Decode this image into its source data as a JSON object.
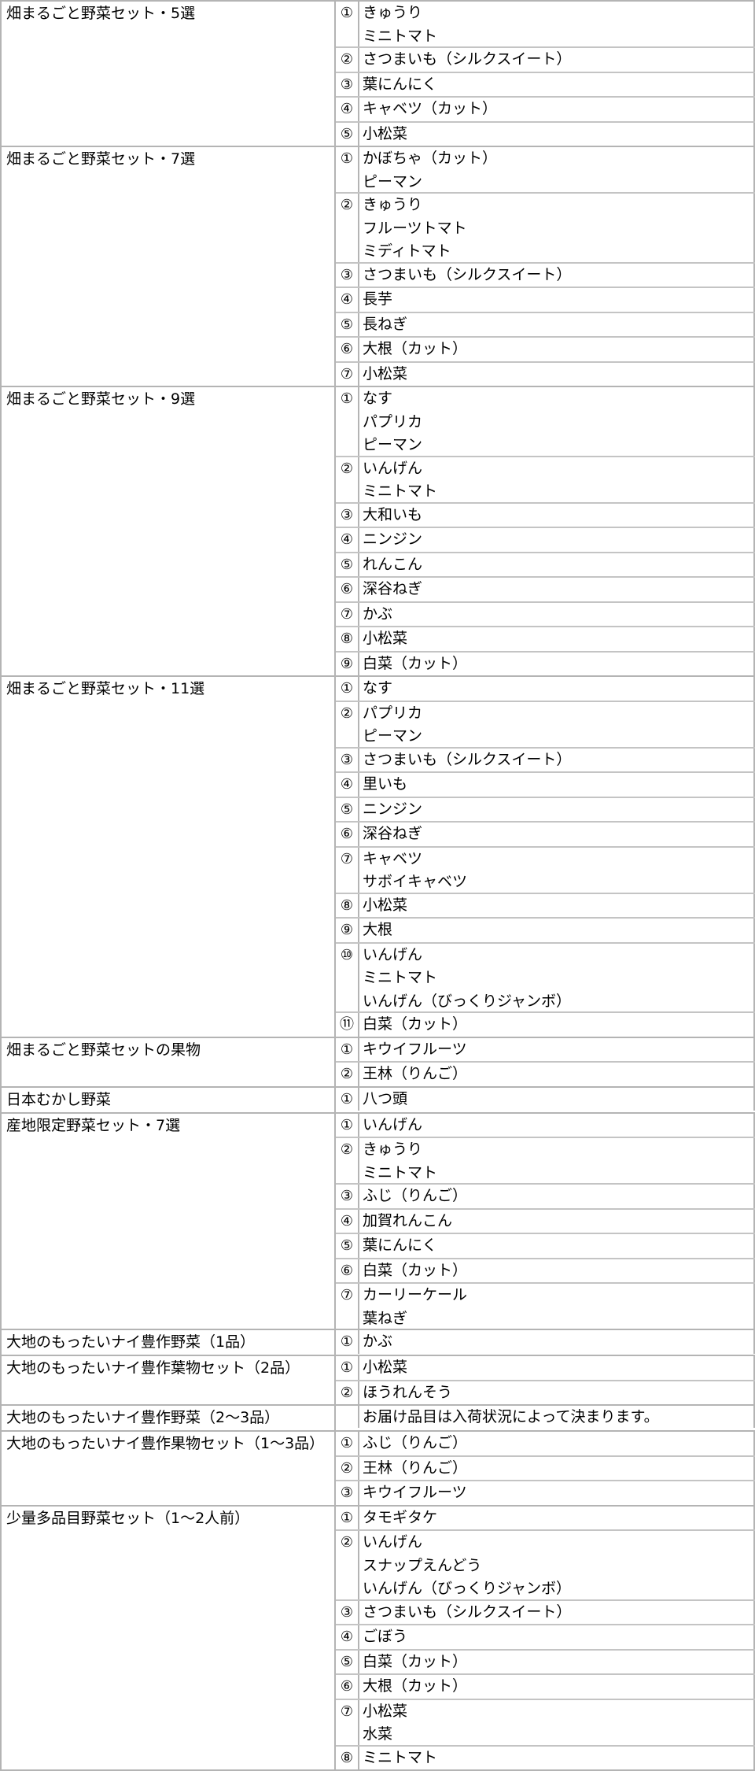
{
  "groups": [
    {
      "name": "畑まるごと野菜セット・5選",
      "items": [
        {
          "num": "①",
          "lines": [
            "きゅうり",
            "ミニトマト"
          ]
        },
        {
          "num": "②",
          "lines": [
            "さつまいも（シルクスイート）"
          ]
        },
        {
          "num": "③",
          "lines": [
            "葉にんにく"
          ]
        },
        {
          "num": "④",
          "lines": [
            "キャベツ（カット）"
          ]
        },
        {
          "num": "⑤",
          "lines": [
            "小松菜"
          ]
        }
      ]
    },
    {
      "name": "畑まるごと野菜セット・7選",
      "items": [
        {
          "num": "①",
          "lines": [
            "かぼちゃ（カット）",
            "ピーマン"
          ]
        },
        {
          "num": "②",
          "lines": [
            "きゅうり",
            "フルーツトマト",
            "ミディトマト"
          ]
        },
        {
          "num": "③",
          "lines": [
            "さつまいも（シルクスイート）"
          ]
        },
        {
          "num": "④",
          "lines": [
            "長芋"
          ]
        },
        {
          "num": "⑤",
          "lines": [
            "長ねぎ"
          ]
        },
        {
          "num": "⑥",
          "lines": [
            "大根（カット）"
          ]
        },
        {
          "num": "⑦",
          "lines": [
            "小松菜"
          ]
        }
      ]
    },
    {
      "name": "畑まるごと野菜セット・9選",
      "items": [
        {
          "num": "①",
          "lines": [
            "なす",
            "パプリカ",
            "ピーマン"
          ]
        },
        {
          "num": "②",
          "lines": [
            "いんげん",
            "ミニトマト"
          ]
        },
        {
          "num": "③",
          "lines": [
            "大和いも"
          ]
        },
        {
          "num": "④",
          "lines": [
            "ニンジン"
          ]
        },
        {
          "num": "⑤",
          "lines": [
            "れんこん"
          ]
        },
        {
          "num": "⑥",
          "lines": [
            "深谷ねぎ"
          ]
        },
        {
          "num": "⑦",
          "lines": [
            "かぶ"
          ]
        },
        {
          "num": "⑧",
          "lines": [
            "小松菜"
          ]
        },
        {
          "num": "⑨",
          "lines": [
            "白菜（カット）"
          ]
        }
      ]
    },
    {
      "name": "畑まるごと野菜セット・11選",
      "items": [
        {
          "num": "①",
          "lines": [
            "なす"
          ]
        },
        {
          "num": "②",
          "lines": [
            "パプリカ",
            "ピーマン"
          ]
        },
        {
          "num": "③",
          "lines": [
            "さつまいも（シルクスイート）"
          ]
        },
        {
          "num": "④",
          "lines": [
            "里いも"
          ]
        },
        {
          "num": "⑤",
          "lines": [
            "ニンジン"
          ]
        },
        {
          "num": "⑥",
          "lines": [
            "深谷ねぎ"
          ]
        },
        {
          "num": "⑦",
          "lines": [
            "キャベツ",
            "サボイキャベツ"
          ]
        },
        {
          "num": "⑧",
          "lines": [
            "小松菜"
          ]
        },
        {
          "num": "⑨",
          "lines": [
            "大根"
          ]
        },
        {
          "num": "⑩",
          "lines": [
            "いんげん",
            "ミニトマト",
            "いんげん（びっくりジャンボ）"
          ]
        },
        {
          "num": "⑪",
          "lines": [
            "白菜（カット）"
          ]
        }
      ]
    },
    {
      "name": "畑まるごと野菜セットの果物",
      "items": [
        {
          "num": "①",
          "lines": [
            "キウイフルーツ"
          ]
        },
        {
          "num": "②",
          "lines": [
            "王林（りんご）"
          ]
        }
      ]
    },
    {
      "name": "日本むかし野菜",
      "items": [
        {
          "num": "①",
          "lines": [
            "八つ頭"
          ]
        }
      ]
    },
    {
      "name": "産地限定野菜セット・7選",
      "items": [
        {
          "num": "①",
          "lines": [
            "いんげん"
          ]
        },
        {
          "num": "②",
          "lines": [
            "きゅうり",
            "ミニトマト"
          ]
        },
        {
          "num": "③",
          "lines": [
            "ふじ（りんご）"
          ]
        },
        {
          "num": "④",
          "lines": [
            "加賀れんこん"
          ]
        },
        {
          "num": "⑤",
          "lines": [
            "葉にんにく"
          ]
        },
        {
          "num": "⑥",
          "lines": [
            "白菜（カット）"
          ]
        },
        {
          "num": "⑦",
          "lines": [
            "カーリーケール",
            "葉ねぎ"
          ]
        }
      ]
    },
    {
      "name": "大地のもったいナイ豊作野菜（1品）",
      "items": [
        {
          "num": "①",
          "lines": [
            "かぶ"
          ]
        }
      ]
    },
    {
      "name": "大地のもったいナイ豊作葉物セット（2品）",
      "items": [
        {
          "num": "①",
          "lines": [
            "小松菜"
          ]
        },
        {
          "num": "②",
          "lines": [
            "ほうれんそう"
          ]
        }
      ]
    },
    {
      "name": "大地のもったいナイ豊作野菜（2〜3品）",
      "items": [
        {
          "num": "",
          "lines": [
            "お届け品目は入荷状況によって決まります。"
          ]
        }
      ]
    },
    {
      "name": "大地のもったいナイ豊作果物セット（1〜3品）",
      "items": [
        {
          "num": "①",
          "lines": [
            "ふじ（りんご）"
          ]
        },
        {
          "num": "②",
          "lines": [
            "王林（りんご）"
          ]
        },
        {
          "num": "③",
          "lines": [
            "キウイフルーツ"
          ]
        }
      ]
    },
    {
      "name": "少量多品目野菜セット（1〜2人前）",
      "items": [
        {
          "num": "①",
          "lines": [
            "タモギタケ"
          ]
        },
        {
          "num": "②",
          "lines": [
            "いんげん",
            "スナップえんどう",
            "いんげん（びっくりジャンボ）"
          ]
        },
        {
          "num": "③",
          "lines": [
            "さつまいも（シルクスイート）"
          ]
        },
        {
          "num": "④",
          "lines": [
            "ごぼう"
          ]
        },
        {
          "num": "⑤",
          "lines": [
            "白菜（カット）"
          ]
        },
        {
          "num": "⑥",
          "lines": [
            "大根（カット）"
          ]
        },
        {
          "num": "⑦",
          "lines": [
            "小松菜",
            "水菜"
          ]
        },
        {
          "num": "⑧",
          "lines": [
            "ミニトマト"
          ]
        }
      ]
    }
  ]
}
